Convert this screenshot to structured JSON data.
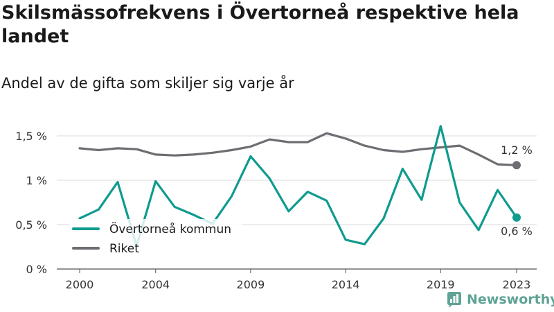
{
  "chart_data": {
    "type": "line",
    "title": "Skilsmässofrekvens i Övertorneå respektive hela landet",
    "subtitle": "Andel av de gifta som skiljer sig varje år",
    "x": [
      2000,
      2001,
      2002,
      2003,
      2004,
      2005,
      2006,
      2007,
      2008,
      2009,
      2010,
      2011,
      2012,
      2013,
      2014,
      2015,
      2016,
      2017,
      2018,
      2019,
      2020,
      2021,
      2022,
      2023
    ],
    "xticks": [
      2000,
      2004,
      2009,
      2014,
      2019,
      2023
    ],
    "xtick_labels": [
      "2000",
      "2004",
      "2009",
      "2014",
      "2019",
      "2023"
    ],
    "yticks": [
      0,
      0.5,
      1,
      1.5
    ],
    "ytick_labels": [
      "0 %",
      "0,5 %",
      "1 %",
      "1,5 %"
    ],
    "ylim": [
      0,
      1.5
    ],
    "grid": true,
    "series": [
      {
        "name": "Övertorneå kommun",
        "color": "#0f9b8e",
        "values": [
          0.57,
          0.67,
          0.98,
          0.26,
          0.99,
          0.7,
          0.61,
          0.51,
          0.82,
          1.27,
          1.02,
          0.65,
          0.87,
          0.77,
          0.33,
          0.28,
          0.57,
          1.13,
          0.78,
          1.61,
          0.75,
          0.44,
          0.89,
          0.58
        ],
        "end_label": "0,6 %"
      },
      {
        "name": "Riket",
        "color": "#6d6d72",
        "values": [
          1.36,
          1.34,
          1.36,
          1.35,
          1.29,
          1.28,
          1.29,
          1.31,
          1.34,
          1.38,
          1.46,
          1.43,
          1.43,
          1.53,
          1.47,
          1.39,
          1.34,
          1.32,
          1.35,
          1.37,
          1.39,
          1.29,
          1.18,
          1.17
        ],
        "end_label": "1,2 %"
      }
    ],
    "legend": [
      "Övertorneå kommun",
      "Riket"
    ],
    "legend_position": "bottom-left"
  },
  "logo": {
    "text": "Newsworthy",
    "icon": "bar-chart-icon"
  }
}
